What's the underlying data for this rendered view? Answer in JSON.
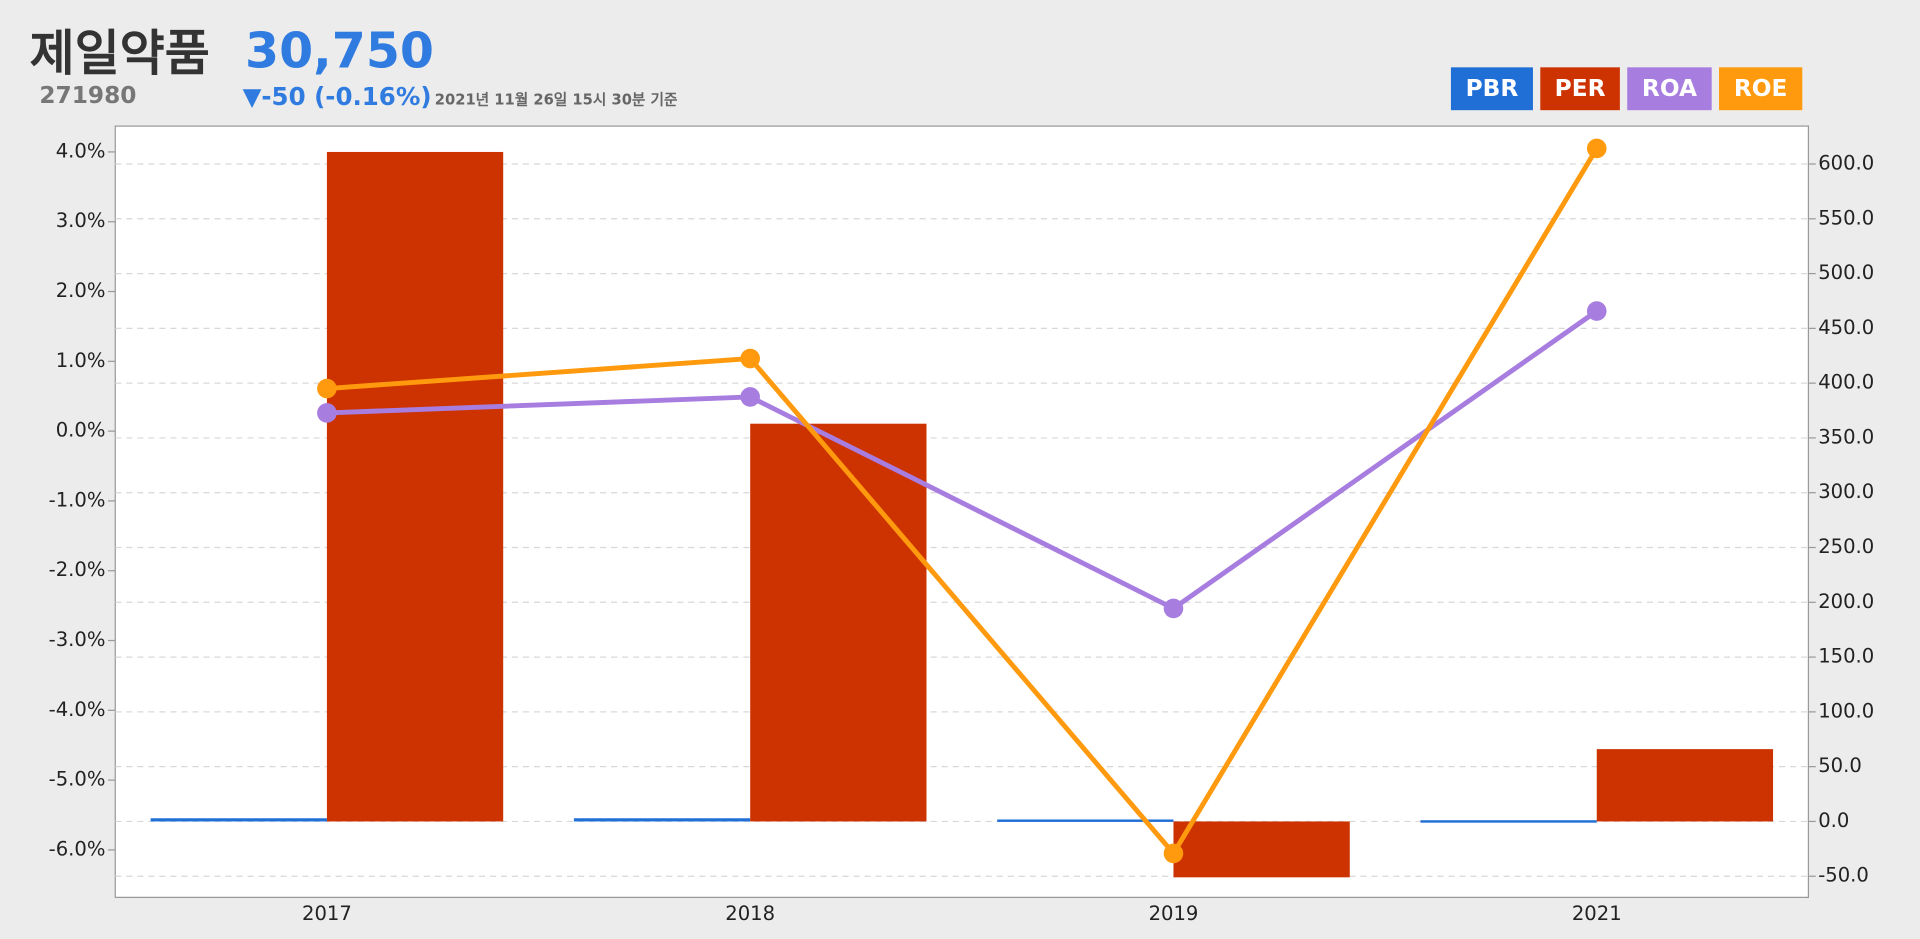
{
  "chart_data": {
    "type": "bar",
    "title": "제일약품",
    "code": "271980",
    "price": "30,750",
    "change": "▼-50 (-0.16%)",
    "timestamp": "2021년 11월 26일 15시 30분 기준",
    "categories": [
      "2017",
      "2018",
      "2019",
      "2021"
    ],
    "series": [
      {
        "name": "PBR",
        "color": "#1f6fd6",
        "type": "bar",
        "axis": "y2",
        "values": [
          2.9,
          2.9,
          1.8,
          1.1
        ]
      },
      {
        "name": "PER",
        "color": "#cc3300",
        "type": "bar",
        "axis": "y2",
        "values": [
          611,
          363,
          -51,
          66
        ]
      },
      {
        "name": "ROA",
        "color": "#a77de0",
        "type": "line",
        "values": [
          0.26,
          0.49,
          -2.54,
          1.72
        ]
      },
      {
        "name": "ROE",
        "color": "#ff9a0e",
        "type": "line",
        "values": [
          0.61,
          1.04,
          -6.05,
          4.05
        ]
      }
    ],
    "ylim": [
      -6.68,
      4.37
    ],
    "yticks": [
      {
        "value": 4,
        "label": "4.0%"
      },
      {
        "value": 3,
        "label": "3.0%"
      },
      {
        "value": 2,
        "label": "2.0%"
      },
      {
        "value": 1,
        "label": "1.0%"
      },
      {
        "value": 0,
        "label": "0.0%"
      },
      {
        "value": -1,
        "label": "-1.0%"
      },
      {
        "value": -2,
        "label": "-2.0%"
      },
      {
        "value": -3,
        "label": "-3.0%"
      },
      {
        "value": -4,
        "label": "-4.0%"
      },
      {
        "value": -5,
        "label": "-5.0%"
      },
      {
        "value": -6,
        "label": "-6.0%"
      }
    ],
    "y2lim": [
      -69.3,
      634.6
    ],
    "y2ticks": [
      {
        "value": 600,
        "label": "600.0"
      },
      {
        "value": 550,
        "label": "550.0"
      },
      {
        "value": 500,
        "label": "500.0"
      },
      {
        "value": 450,
        "label": "450.0"
      },
      {
        "value": 400,
        "label": "400.0"
      },
      {
        "value": 350,
        "label": "350.0"
      },
      {
        "value": 300,
        "label": "300.0"
      },
      {
        "value": 250,
        "label": "250.0"
      },
      {
        "value": 200,
        "label": "200.0"
      },
      {
        "value": 150,
        "label": "150.0"
      },
      {
        "value": 100,
        "label": "100.0"
      },
      {
        "value": 50,
        "label": "50.0"
      },
      {
        "value": 0,
        "label": "0.0"
      },
      {
        "value": -50,
        "label": "-50.0"
      }
    ],
    "grid": true
  }
}
